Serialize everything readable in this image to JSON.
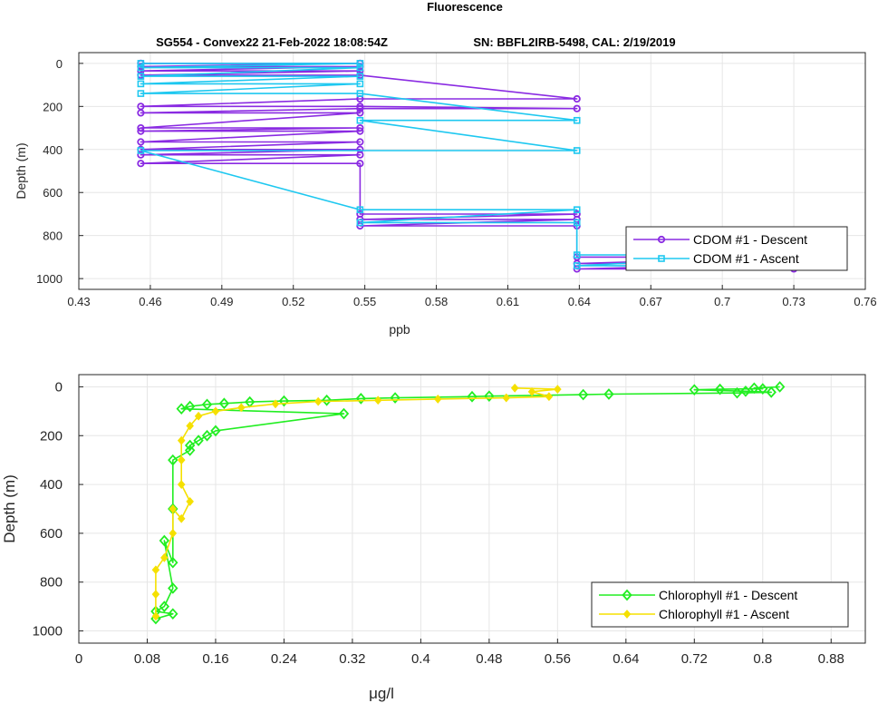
{
  "figure": {
    "title": "Fluorescence",
    "subtitle_left": "SG554 - Convex22 21-Feb-2022 18:08:54Z",
    "subtitle_right": "SN: BBFL2IRB-5498, CAL: 2/19/2019"
  },
  "chart_data": [
    {
      "type": "line",
      "xlabel": "ppb",
      "ylabel": "Depth (m)",
      "xlim": [
        0.43,
        0.76
      ],
      "ylim": [
        1050,
        -50
      ],
      "y_reversed": true,
      "xticks": [
        "0.43",
        "0.46",
        "0.49",
        "0.52",
        "0.55",
        "0.58",
        "0.61",
        "0.64",
        "0.67",
        "0.7",
        "0.73",
        "0.76"
      ],
      "yticks": [
        "0",
        "200",
        "400",
        "600",
        "800",
        "1000"
      ],
      "grid": true,
      "legend_placement": "bottom-right",
      "series": [
        {
          "name": "CDOM #1 - Descent",
          "color": "#8a2be2",
          "marker": "circle",
          "points": [
            [
              0.456,
              0
            ],
            [
              0.548,
              0
            ],
            [
              0.456,
              15
            ],
            [
              0.548,
              15
            ],
            [
              0.456,
              35
            ],
            [
              0.548,
              35
            ],
            [
              0.456,
              55
            ],
            [
              0.548,
              55
            ],
            [
              0.639,
              165
            ],
            [
              0.548,
              165
            ],
            [
              0.456,
              200
            ],
            [
              0.548,
              200
            ],
            [
              0.639,
              210
            ],
            [
              0.548,
              210
            ],
            [
              0.456,
              230
            ],
            [
              0.548,
              230
            ],
            [
              0.456,
              300
            ],
            [
              0.548,
              300
            ],
            [
              0.456,
              315
            ],
            [
              0.548,
              315
            ],
            [
              0.456,
              365
            ],
            [
              0.548,
              365
            ],
            [
              0.456,
              400
            ],
            [
              0.548,
              400
            ],
            [
              0.456,
              425
            ],
            [
              0.548,
              425
            ],
            [
              0.456,
              465
            ],
            [
              0.548,
              465
            ],
            [
              0.548,
              700
            ],
            [
              0.639,
              700
            ],
            [
              0.548,
              725
            ],
            [
              0.639,
              725
            ],
            [
              0.548,
              755
            ],
            [
              0.639,
              755
            ],
            [
              0.639,
              900
            ],
            [
              0.73,
              900
            ],
            [
              0.639,
              930
            ],
            [
              0.73,
              930
            ],
            [
              0.639,
              955
            ],
            [
              0.73,
              955
            ]
          ]
        },
        {
          "name": "CDOM #1 - Ascent",
          "color": "#1ec8f0",
          "marker": "square",
          "points": [
            [
              0.456,
              0
            ],
            [
              0.548,
              0
            ],
            [
              0.456,
              20
            ],
            [
              0.548,
              20
            ],
            [
              0.456,
              60
            ],
            [
              0.548,
              60
            ],
            [
              0.456,
              95
            ],
            [
              0.548,
              95
            ],
            [
              0.456,
              140
            ],
            [
              0.548,
              140
            ],
            [
              0.639,
              265
            ],
            [
              0.548,
              265
            ],
            [
              0.639,
              405
            ],
            [
              0.456,
              405
            ],
            [
              0.548,
              680
            ],
            [
              0.639,
              680
            ],
            [
              0.548,
              740
            ],
            [
              0.639,
              740
            ],
            [
              0.639,
              890
            ],
            [
              0.73,
              890
            ],
            [
              0.639,
              940
            ],
            [
              0.73,
              940
            ]
          ]
        }
      ]
    },
    {
      "type": "line",
      "xlabel": "μg/l",
      "ylabel": "Depth (m)",
      "xlim": [
        0,
        0.92
      ],
      "ylim": [
        1050,
        -50
      ],
      "y_reversed": true,
      "xticks": [
        "0",
        "0.08",
        "0.16",
        "0.24",
        "0.32",
        "0.4",
        "0.48",
        "0.56",
        "0.64",
        "0.72",
        "0.8",
        "0.88"
      ],
      "yticks": [
        "0",
        "200",
        "400",
        "600",
        "800",
        "1000"
      ],
      "grid": true,
      "legend_placement": "bottom-right",
      "series": [
        {
          "name": "Chlorophyll #1 - Descent",
          "color": "#22ee22",
          "marker": "diamond",
          "points": [
            [
              0.82,
              0
            ],
            [
              0.79,
              5
            ],
            [
              0.8,
              8
            ],
            [
              0.75,
              10
            ],
            [
              0.72,
              12
            ],
            [
              0.78,
              18
            ],
            [
              0.81,
              22
            ],
            [
              0.77,
              25
            ],
            [
              0.62,
              30
            ],
            [
              0.59,
              32
            ],
            [
              0.48,
              38
            ],
            [
              0.46,
              40
            ],
            [
              0.37,
              45
            ],
            [
              0.33,
              48
            ],
            [
              0.29,
              55
            ],
            [
              0.24,
              58
            ],
            [
              0.2,
              62
            ],
            [
              0.17,
              68
            ],
            [
              0.15,
              72
            ],
            [
              0.13,
              80
            ],
            [
              0.12,
              90
            ],
            [
              0.31,
              110
            ],
            [
              0.16,
              180
            ],
            [
              0.15,
              200
            ],
            [
              0.14,
              220
            ],
            [
              0.13,
              240
            ],
            [
              0.13,
              260
            ],
            [
              0.11,
              300
            ],
            [
              0.11,
              500
            ],
            [
              0.11,
              720
            ],
            [
              0.1,
              630
            ],
            [
              0.11,
              825
            ],
            [
              0.1,
              900
            ],
            [
              0.09,
              920
            ],
            [
              0.11,
              930
            ],
            [
              0.09,
              950
            ]
          ]
        },
        {
          "name": "Chlorophyll #1 - Ascent",
          "color": "#f5e000",
          "marker": "circle-filled",
          "points": [
            [
              0.09,
              940
            ],
            [
              0.09,
              850
            ],
            [
              0.09,
              750
            ],
            [
              0.1,
              700
            ],
            [
              0.11,
              600
            ],
            [
              0.11,
              500
            ],
            [
              0.12,
              540
            ],
            [
              0.13,
              470
            ],
            [
              0.12,
              400
            ],
            [
              0.12,
              300
            ],
            [
              0.12,
              220
            ],
            [
              0.13,
              160
            ],
            [
              0.14,
              120
            ],
            [
              0.16,
              100
            ],
            [
              0.19,
              85
            ],
            [
              0.23,
              70
            ],
            [
              0.28,
              60
            ],
            [
              0.35,
              55
            ],
            [
              0.42,
              50
            ],
            [
              0.5,
              45
            ],
            [
              0.55,
              40
            ],
            [
              0.53,
              20
            ],
            [
              0.56,
              10
            ],
            [
              0.51,
              5
            ]
          ]
        }
      ]
    }
  ]
}
